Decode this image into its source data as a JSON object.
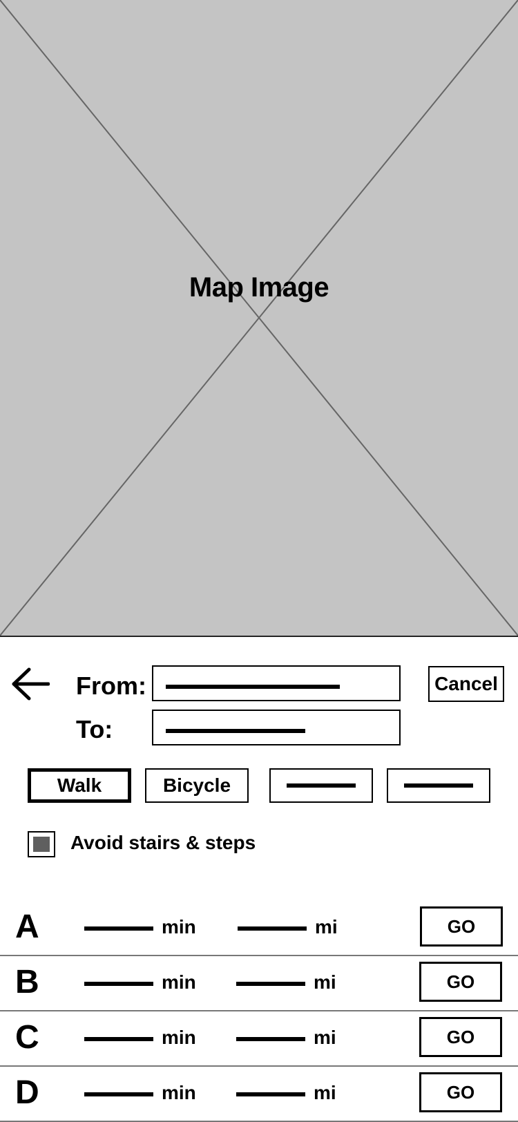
{
  "map": {
    "label": "Map Image"
  },
  "form": {
    "from_label": "From:",
    "to_label": "To:",
    "from_value": "",
    "to_value": "",
    "cancel_label": "Cancel"
  },
  "modes": {
    "walk": "Walk",
    "bicycle": "Bicycle",
    "active": "walk"
  },
  "options": {
    "avoid_stairs_label": "Avoid stairs & steps",
    "avoid_stairs_checked": true
  },
  "routes": [
    {
      "letter": "A",
      "min_unit": "min",
      "mi_unit": "mi",
      "go_label": "GO"
    },
    {
      "letter": "B",
      "min_unit": "min",
      "mi_unit": "mi",
      "go_label": "GO"
    },
    {
      "letter": "C",
      "min_unit": "min",
      "mi_unit": "mi",
      "go_label": "GO"
    },
    {
      "letter": "D",
      "min_unit": "min",
      "mi_unit": "mi",
      "go_label": "GO"
    }
  ],
  "icons": {
    "back": "arrow-left-icon"
  },
  "colors": {
    "map_placeholder": "#c4c4c4",
    "checkbox_fill": "#5f5f5f",
    "divider": "#777777"
  }
}
